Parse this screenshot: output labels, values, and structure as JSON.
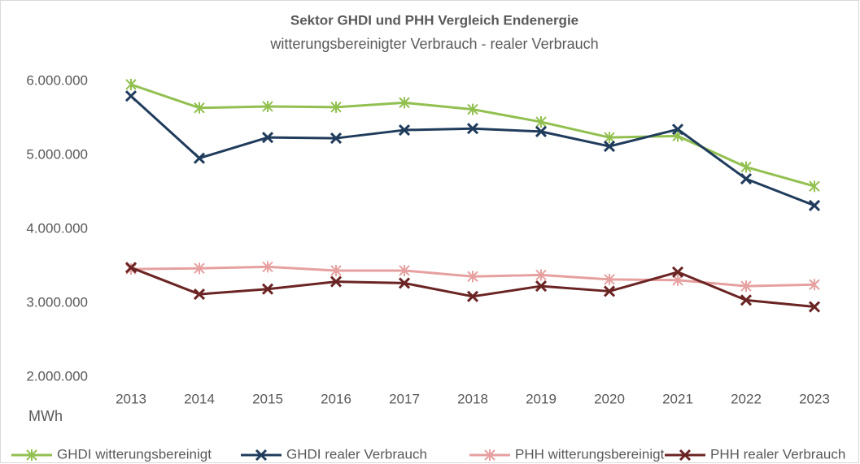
{
  "chart_data": {
    "type": "line",
    "title": "Sektor GHDI und PHH  Vergleich Endenergie",
    "subtitle": "witterungsbereinigter Verbrauch - realer Verbrauch",
    "y_label": "MWh",
    "categories": [
      "2013",
      "2014",
      "2015",
      "2016",
      "2017",
      "2018",
      "2019",
      "2020",
      "2021",
      "2022",
      "2023"
    ],
    "series": [
      {
        "name": "GHDI witterungsbereinigt",
        "color": "#92c050",
        "marker": "star",
        "values": [
          5956000,
          5640000,
          5660000,
          5650000,
          5710000,
          5620000,
          5450000,
          5240000,
          5260000,
          4840000,
          4580000
        ]
      },
      {
        "name": "GHDI realer Verbrauch",
        "color": "#203c5c",
        "marker": "x",
        "values": [
          5800000,
          4960000,
          5240000,
          5230000,
          5340000,
          5360000,
          5320000,
          5120000,
          5350000,
          4680000,
          4320000
        ]
      },
      {
        "name": "PHH witterungsbereinigt",
        "color": "#e6a0a0",
        "marker": "star",
        "values": [
          3460000,
          3470000,
          3490000,
          3440000,
          3440000,
          3360000,
          3380000,
          3320000,
          3310000,
          3230000,
          3250000
        ]
      },
      {
        "name": "PHH realer Verbrauch",
        "color": "#6b2424",
        "marker": "x",
        "values": [
          3480000,
          3120000,
          3190000,
          3290000,
          3270000,
          3090000,
          3230000,
          3160000,
          3420000,
          3040000,
          2950000
        ]
      }
    ],
    "ylim": [
      2000000,
      6000000
    ],
    "yticks": [
      {
        "value": 2000000,
        "label": "2.000.000"
      },
      {
        "value": 3000000,
        "label": "3.000.000"
      },
      {
        "value": 4000000,
        "label": "4.000.000"
      },
      {
        "value": 5000000,
        "label": "5.000.000"
      },
      {
        "value": 6000000,
        "label": "6.000.000"
      }
    ],
    "grid": false,
    "legend": "bottom"
  }
}
